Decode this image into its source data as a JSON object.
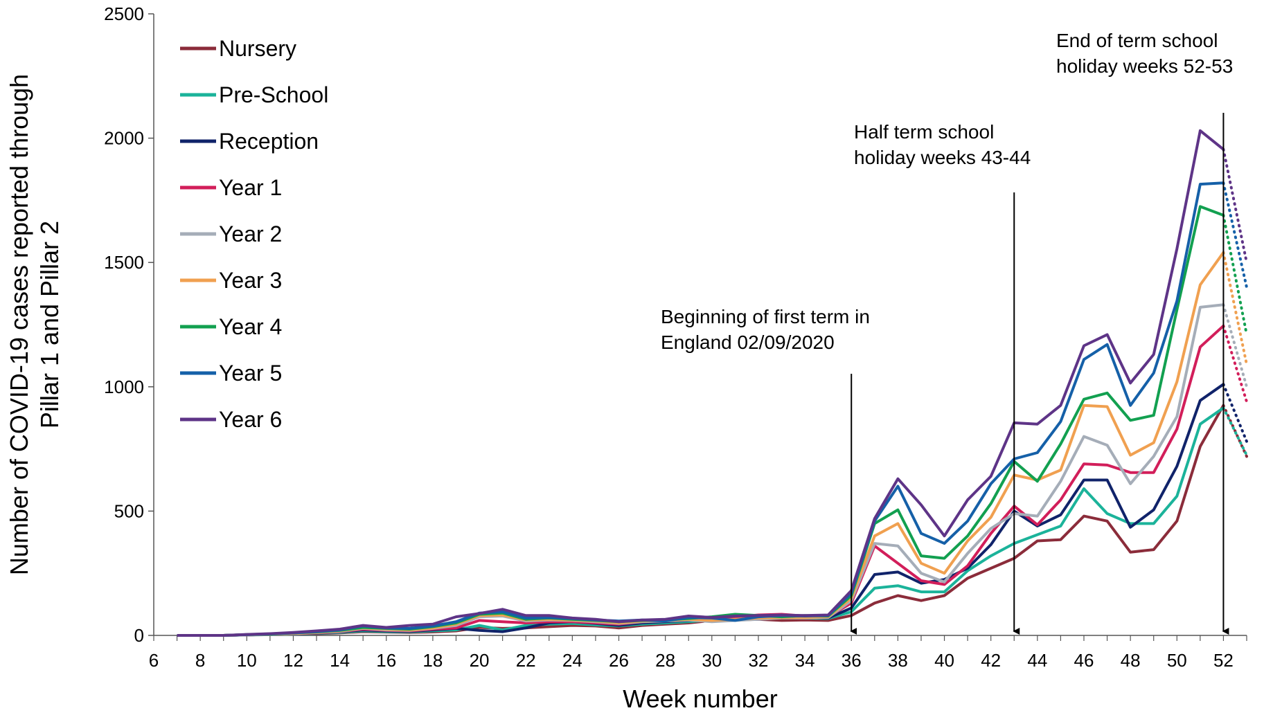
{
  "chart_data": {
    "type": "line",
    "title": "",
    "xlabel": "Week number",
    "ylabel_lines": [
      "Number of COVID-19 cases reported through",
      "Pillar 1 and Pillar 2"
    ],
    "xlim": [
      6,
      53
    ],
    "ylim": [
      0,
      2500
    ],
    "x_ticks": [
      6,
      8,
      10,
      12,
      14,
      16,
      18,
      20,
      22,
      24,
      26,
      28,
      30,
      32,
      34,
      36,
      38,
      40,
      42,
      44,
      46,
      48,
      50,
      52
    ],
    "y_ticks": [
      0,
      500,
      1000,
      1500,
      2000,
      2500
    ],
    "grid": false,
    "legend_position": "top-left",
    "x": [
      7,
      8,
      9,
      10,
      11,
      12,
      13,
      14,
      15,
      16,
      17,
      18,
      19,
      20,
      21,
      22,
      23,
      24,
      25,
      26,
      27,
      28,
      29,
      30,
      31,
      32,
      33,
      34,
      35,
      36,
      37,
      38,
      39,
      40,
      41,
      42,
      43,
      44,
      45,
      46,
      47,
      48,
      49,
      50,
      51,
      52
    ],
    "series": [
      {
        "name": "Nursery",
        "color": "#8B2C3A",
        "values": [
          0,
          0,
          0,
          2,
          3,
          5,
          7,
          10,
          15,
          13,
          12,
          14,
          18,
          32,
          28,
          30,
          35,
          40,
          38,
          30,
          40,
          45,
          50,
          60,
          62,
          65,
          60,
          62,
          60,
          80,
          130,
          160,
          140,
          160,
          230,
          270,
          310,
          380,
          385,
          480,
          460,
          335,
          345,
          460,
          760,
          925
        ],
        "dotted": [
          52,
          53
        ],
        "dotted_values": [
          925,
          720
        ]
      },
      {
        "name": "Pre-School",
        "color": "#1BB39A",
        "values": [
          0,
          0,
          0,
          2,
          3,
          5,
          8,
          12,
          18,
          15,
          14,
          18,
          22,
          40,
          22,
          40,
          45,
          48,
          42,
          38,
          45,
          50,
          55,
          62,
          68,
          70,
          72,
          70,
          68,
          95,
          190,
          200,
          175,
          175,
          260,
          320,
          370,
          405,
          440,
          590,
          490,
          450,
          450,
          560,
          850,
          915
        ],
        "dotted": [
          52,
          53
        ],
        "dotted_values": [
          915,
          725
        ]
      },
      {
        "name": "Reception",
        "color": "#10236A",
        "values": [
          0,
          0,
          0,
          2,
          4,
          6,
          9,
          14,
          22,
          18,
          16,
          22,
          28,
          20,
          15,
          30,
          50,
          55,
          48,
          40,
          50,
          55,
          60,
          65,
          70,
          75,
          78,
          72,
          70,
          110,
          245,
          255,
          210,
          225,
          270,
          365,
          500,
          440,
          485,
          625,
          625,
          435,
          505,
          680,
          945,
          1010
        ],
        "dotted": [
          52,
          53
        ],
        "dotted_values": [
          1010,
          780
        ]
      },
      {
        "name": "Year 1",
        "color": "#D21E5A",
        "values": [
          0,
          0,
          0,
          2,
          4,
          6,
          10,
          15,
          25,
          20,
          18,
          25,
          30,
          60,
          55,
          50,
          55,
          55,
          50,
          45,
          55,
          60,
          65,
          70,
          75,
          82,
          85,
          78,
          75,
          130,
          360,
          290,
          220,
          205,
          280,
          410,
          520,
          445,
          545,
          690,
          685,
          655,
          655,
          830,
          1160,
          1245
        ],
        "dotted": [
          52,
          53
        ],
        "dotted_values": [
          1245,
          940
        ]
      },
      {
        "name": "Year 2",
        "color": "#A5ADB8",
        "values": [
          0,
          0,
          0,
          2,
          4,
          7,
          11,
          16,
          28,
          22,
          20,
          28,
          40,
          75,
          78,
          58,
          62,
          60,
          55,
          48,
          55,
          58,
          62,
          55,
          60,
          65,
          70,
          70,
          72,
          140,
          370,
          360,
          250,
          215,
          330,
          430,
          490,
          480,
          620,
          800,
          765,
          610,
          720,
          880,
          1320,
          1330
        ],
        "dotted": [
          52,
          53
        ],
        "dotted_values": [
          1330,
          1000
        ]
      },
      {
        "name": "Year 3",
        "color": "#F0A050",
        "values": [
          0,
          0,
          0,
          3,
          5,
          8,
          12,
          18,
          30,
          25,
          22,
          30,
          45,
          80,
          82,
          62,
          65,
          62,
          58,
          50,
          58,
          60,
          65,
          60,
          65,
          70,
          72,
          72,
          75,
          150,
          400,
          450,
          290,
          250,
          380,
          475,
          645,
          625,
          665,
          925,
          920,
          725,
          775,
          1020,
          1410,
          1540
        ],
        "dotted": [
          52,
          53
        ],
        "dotted_values": [
          1540,
          1090
        ]
      },
      {
        "name": "Year 4",
        "color": "#12A050",
        "values": [
          0,
          0,
          0,
          3,
          5,
          10,
          14,
          20,
          32,
          28,
          25,
          35,
          50,
          85,
          90,
          65,
          70,
          65,
          60,
          55,
          60,
          62,
          68,
          75,
          85,
          80,
          75,
          80,
          78,
          160,
          450,
          505,
          320,
          310,
          400,
          530,
          700,
          620,
          770,
          950,
          975,
          865,
          885,
          1310,
          1725,
          1690
        ],
        "dotted": [
          52,
          53
        ],
        "dotted_values": [
          1690,
          1210
        ]
      },
      {
        "name": "Year 5",
        "color": "#1560A8",
        "values": [
          0,
          0,
          0,
          3,
          6,
          10,
          15,
          22,
          38,
          30,
          28,
          38,
          55,
          90,
          95,
          70,
          72,
          68,
          62,
          58,
          62,
          58,
          72,
          70,
          60,
          75,
          80,
          78,
          80,
          170,
          460,
          600,
          410,
          370,
          460,
          610,
          710,
          735,
          860,
          1110,
          1170,
          925,
          1055,
          1345,
          1815,
          1820
        ],
        "dotted": [
          52,
          53
        ],
        "dotted_values": [
          1820,
          1400
        ]
      },
      {
        "name": "Year 6",
        "color": "#5E3487",
        "values": [
          0,
          0,
          0,
          4,
          7,
          12,
          18,
          25,
          40,
          32,
          40,
          45,
          75,
          88,
          105,
          80,
          80,
          70,
          65,
          55,
          62,
          65,
          78,
          72,
          78,
          80,
          82,
          80,
          82,
          180,
          470,
          630,
          525,
          400,
          545,
          640,
          855,
          850,
          925,
          1165,
          1210,
          1015,
          1130,
          1555,
          2030,
          1955
        ],
        "dotted": [
          52,
          53
        ],
        "dotted_values": [
          1955,
          1500
        ]
      }
    ],
    "annotations": [
      {
        "text_lines": [
          "Beginning of first term in",
          "England 02/09/2020"
        ],
        "arrow_x": 36
      },
      {
        "text_lines": [
          "Half term school",
          "holiday weeks 43-44"
        ],
        "arrow_x": 43
      },
      {
        "text_lines": [
          "End of term school",
          "holiday weeks 52-53"
        ],
        "arrow_x": 52
      }
    ]
  }
}
